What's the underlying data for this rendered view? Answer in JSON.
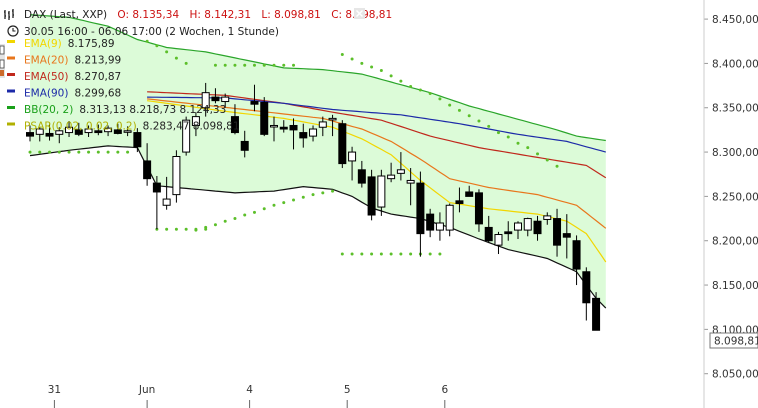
{
  "header": {
    "ticker": "DAX (Last, XXP)",
    "open": "O: 8.135,34",
    "high": "H: 8.142,31",
    "low": "L: 8.098,81",
    "close": "C: 8.098,81",
    "range": "30.05 16:00 - 06.06 17:00 (2 Wochen, 1 Stunde)"
  },
  "legend": [
    {
      "name": "EMA(9)",
      "value": "8.175,89",
      "color": "#f2d600"
    },
    {
      "name": "EMA(20)",
      "value": "8.213,99",
      "color": "#e8761c"
    },
    {
      "name": "EMA(50)",
      "value": "8.270,87",
      "color": "#c0281c"
    },
    {
      "name": "EMA(90)",
      "value": "8.299,68",
      "color": "#1c2aa8"
    },
    {
      "name": "BB(20, 2)",
      "value": "8.313,13 8.218,73 8.124,33",
      "color": "#1aa01a"
    },
    {
      "name": "PSAR(0.02, 0.02, 0.2)",
      "value": "8.283,47 8.098,81",
      "color": "#b0b000"
    }
  ],
  "colors": {
    "bb_fill": "#dcfbd8",
    "bb_upper": "#2aa52a",
    "bb_lower": "#111111",
    "psar": "#5cbf2a",
    "candle": "#000000"
  },
  "last_price_label": "8.098,81",
  "chart_data": {
    "type": "candlestick",
    "ylim": [
      8035,
      8458
    ],
    "y_ticks": [
      8050,
      8100,
      8150,
      8200,
      8250,
      8300,
      8350,
      8400,
      8450
    ],
    "y_tick_labels": [
      "8.050,00",
      "8.100,00",
      "8.150,00",
      "8.200,00",
      "8.250,00",
      "8.300,00",
      "8.350,00",
      "8.400,00",
      "8.450,00"
    ],
    "x_labels": [
      {
        "label": "31",
        "index": 2.5
      },
      {
        "label": "Jun",
        "index": 12
      },
      {
        "label": "4",
        "index": 22.5
      },
      {
        "label": "5",
        "index": 32.5
      },
      {
        "label": "6",
        "index": 42.5
      }
    ],
    "candles": [
      [
        8322,
        8330,
        8312,
        8318
      ],
      [
        8320,
        8328,
        8312,
        8326
      ],
      [
        8321,
        8332,
        8313,
        8318
      ],
      [
        8320,
        8328,
        8310,
        8324
      ],
      [
        8322,
        8335,
        8317,
        8328
      ],
      [
        8325,
        8333,
        8318,
        8320
      ],
      [
        8322,
        8330,
        8317,
        8326
      ],
      [
        8324,
        8331,
        8319,
        8322
      ],
      [
        8323,
        8330,
        8318,
        8327
      ],
      [
        8325,
        8332,
        8320,
        8321
      ],
      [
        8323,
        8329,
        8318,
        8324
      ],
      [
        8322,
        8327,
        8300,
        8306
      ],
      [
        8290,
        8310,
        8262,
        8270
      ],
      [
        8265,
        8273,
        8213,
        8255
      ],
      [
        8240,
        8272,
        8235,
        8247
      ],
      [
        8252,
        8302,
        8243,
        8295
      ],
      [
        8300,
        8340,
        8296,
        8336
      ],
      [
        8330,
        8345,
        8318,
        8340
      ],
      [
        8350,
        8378,
        8340,
        8367
      ],
      [
        8362,
        8372,
        8355,
        8358
      ],
      [
        8357,
        8366,
        8350,
        8362
      ],
      [
        8340,
        8354,
        8320,
        8322
      ],
      [
        8312,
        8324,
        8294,
        8302
      ],
      [
        8357,
        8376,
        8346,
        8354
      ],
      [
        8356,
        8362,
        8318,
        8320
      ],
      [
        8330,
        8340,
        8312,
        8330
      ],
      [
        8328,
        8336,
        8322,
        8326
      ],
      [
        8330,
        8338,
        8303,
        8325
      ],
      [
        8322,
        8332,
        8305,
        8316
      ],
      [
        8318,
        8330,
        8312,
        8326
      ],
      [
        8328,
        8340,
        8318,
        8334
      ],
      [
        8338,
        8342,
        8318,
        8338
      ],
      [
        8332,
        8336,
        8282,
        8287
      ],
      [
        8290,
        8306,
        8268,
        8300
      ],
      [
        8280,
        8290,
        8260,
        8265
      ],
      [
        8272,
        8280,
        8223,
        8229
      ],
      [
        8238,
        8280,
        8228,
        8273
      ],
      [
        8270,
        8288,
        8266,
        8274
      ],
      [
        8276,
        8300,
        8268,
        8280
      ],
      [
        8265,
        8282,
        8240,
        8268
      ],
      [
        8265,
        8278,
        8182,
        8208
      ],
      [
        8230,
        8236,
        8204,
        8212
      ],
      [
        8212,
        8232,
        8200,
        8220
      ],
      [
        8212,
        8242,
        8205,
        8240
      ],
      [
        8245,
        8260,
        8232,
        8242
      ],
      [
        8255,
        8262,
        8250,
        8250
      ],
      [
        8254,
        8258,
        8210,
        8219
      ],
      [
        8215,
        8228,
        8198,
        8200
      ],
      [
        8195,
        8210,
        8185,
        8207
      ],
      [
        8210,
        8222,
        8200,
        8208
      ],
      [
        8212,
        8222,
        8202,
        8220
      ],
      [
        8212,
        8226,
        8205,
        8225
      ],
      [
        8222,
        8228,
        8200,
        8208
      ],
      [
        8224,
        8232,
        8218,
        8228
      ],
      [
        8225,
        8236,
        8182,
        8195
      ],
      [
        8208,
        8230,
        8180,
        8204
      ],
      [
        8200,
        8206,
        8150,
        8168
      ],
      [
        8165,
        8170,
        8110,
        8130
      ],
      [
        8135,
        8142,
        8099,
        8099
      ]
    ],
    "series": [
      {
        "name": "EMA(9)",
        "color": "#f2d600",
        "points": [
          [
            12,
            8358
          ],
          [
            20,
            8346
          ],
          [
            26,
            8338
          ],
          [
            31,
            8328
          ],
          [
            34,
            8315
          ],
          [
            37,
            8297
          ],
          [
            40,
            8268
          ],
          [
            43,
            8243
          ],
          [
            47,
            8236
          ],
          [
            52,
            8230
          ],
          [
            55,
            8222
          ],
          [
            57,
            8208
          ],
          [
            59,
            8176
          ]
        ]
      },
      {
        "name": "EMA(20)",
        "color": "#e8761c",
        "points": [
          [
            12,
            8360
          ],
          [
            22,
            8348
          ],
          [
            30,
            8338
          ],
          [
            34,
            8326
          ],
          [
            37,
            8312
          ],
          [
            40,
            8292
          ],
          [
            43,
            8270
          ],
          [
            47,
            8260
          ],
          [
            52,
            8252
          ],
          [
            56,
            8240
          ],
          [
            59,
            8214
          ]
        ]
      },
      {
        "name": "EMA(50)",
        "color": "#c0281c",
        "points": [
          [
            12,
            8368
          ],
          [
            20,
            8364
          ],
          [
            26,
            8355
          ],
          [
            31,
            8345
          ],
          [
            36,
            8336
          ],
          [
            41,
            8318
          ],
          [
            46,
            8305
          ],
          [
            52,
            8294
          ],
          [
            57,
            8285
          ],
          [
            59,
            8271
          ]
        ]
      },
      {
        "name": "EMA(90)",
        "color": "#1c2aa8",
        "points": [
          [
            12,
            8362
          ],
          [
            20,
            8361
          ],
          [
            26,
            8355
          ],
          [
            31,
            8348
          ],
          [
            38,
            8342
          ],
          [
            44,
            8332
          ],
          [
            50,
            8320
          ],
          [
            55,
            8312
          ],
          [
            59,
            8300
          ]
        ]
      },
      {
        "name": "BB upper",
        "color": "#2aa52a",
        "points": [
          [
            0,
            8455
          ],
          [
            4,
            8452
          ],
          [
            8,
            8442
          ],
          [
            11,
            8427
          ],
          [
            14,
            8418
          ],
          [
            18,
            8413
          ],
          [
            22,
            8404
          ],
          [
            26,
            8395
          ],
          [
            30,
            8393
          ],
          [
            34,
            8388
          ],
          [
            38,
            8376
          ],
          [
            41,
            8367
          ],
          [
            45,
            8352
          ],
          [
            50,
            8337
          ],
          [
            54,
            8325
          ],
          [
            56,
            8318
          ],
          [
            59,
            8313
          ]
        ]
      },
      {
        "name": "BB lower",
        "color": "#111111",
        "points": [
          [
            0,
            8296
          ],
          [
            4,
            8302
          ],
          [
            8,
            8307
          ],
          [
            11,
            8305
          ],
          [
            13,
            8262
          ],
          [
            17,
            8258
          ],
          [
            21,
            8254
          ],
          [
            25,
            8256
          ],
          [
            28,
            8261
          ],
          [
            31,
            8258
          ],
          [
            33,
            8250
          ],
          [
            35,
            8237
          ],
          [
            37,
            8230
          ],
          [
            40,
            8225
          ],
          [
            43,
            8215
          ],
          [
            46,
            8202
          ],
          [
            49,
            8190
          ],
          [
            53,
            8180
          ],
          [
            56,
            8165
          ],
          [
            58,
            8135
          ],
          [
            59,
            8124
          ]
        ]
      }
    ],
    "psar": [
      [
        0,
        8300
      ],
      [
        1,
        8300
      ],
      [
        2,
        8300
      ],
      [
        3,
        8300
      ],
      [
        4,
        8300
      ],
      [
        5,
        8300
      ],
      [
        6,
        8300
      ],
      [
        7,
        8300
      ],
      [
        8,
        8300
      ],
      [
        9,
        8300
      ],
      [
        10,
        8300
      ],
      [
        13,
        8213
      ],
      [
        14,
        8213
      ],
      [
        15,
        8213
      ],
      [
        16,
        8213
      ],
      [
        17,
        8213
      ],
      [
        18,
        8213
      ],
      [
        12,
        8425
      ],
      [
        13,
        8420
      ],
      [
        14,
        8413
      ],
      [
        15,
        8406
      ],
      [
        16,
        8400
      ],
      [
        19,
        8398
      ],
      [
        20,
        8398
      ],
      [
        21,
        8398
      ],
      [
        22,
        8398
      ],
      [
        23,
        8398
      ],
      [
        24,
        8398
      ],
      [
        25,
        8398
      ],
      [
        26,
        8398
      ],
      [
        27,
        8398
      ],
      [
        17,
        8212
      ],
      [
        18,
        8215
      ],
      [
        19,
        8218
      ],
      [
        20,
        8222
      ],
      [
        21,
        8225
      ],
      [
        22,
        8229
      ],
      [
        23,
        8232
      ],
      [
        24,
        8236
      ],
      [
        25,
        8240
      ],
      [
        26,
        8243
      ],
      [
        27,
        8246
      ],
      [
        28,
        8249
      ],
      [
        29,
        8252
      ],
      [
        30,
        8254
      ],
      [
        31,
        8256
      ],
      [
        32,
        8185
      ],
      [
        33,
        8185
      ],
      [
        34,
        8185
      ],
      [
        35,
        8185
      ],
      [
        36,
        8185
      ],
      [
        37,
        8185
      ],
      [
        38,
        8185
      ],
      [
        39,
        8185
      ],
      [
        40,
        8185
      ],
      [
        41,
        8185
      ],
      [
        42,
        8185
      ],
      [
        32,
        8410
      ],
      [
        33,
        8405
      ],
      [
        34,
        8400
      ],
      [
        35,
        8396
      ],
      [
        36,
        8392
      ],
      [
        37,
        8386
      ],
      [
        38,
        8380
      ],
      [
        39,
        8374
      ],
      [
        40,
        8370
      ],
      [
        41,
        8366
      ],
      [
        42,
        8360
      ],
      [
        43,
        8353
      ],
      [
        44,
        8347
      ],
      [
        45,
        8341
      ],
      [
        46,
        8335
      ],
      [
        47,
        8329
      ],
      [
        48,
        8322
      ],
      [
        49,
        8317
      ],
      [
        50,
        8310
      ],
      [
        51,
        8305
      ],
      [
        52,
        8298
      ],
      [
        53,
        8291
      ],
      [
        54,
        8284
      ]
    ]
  }
}
